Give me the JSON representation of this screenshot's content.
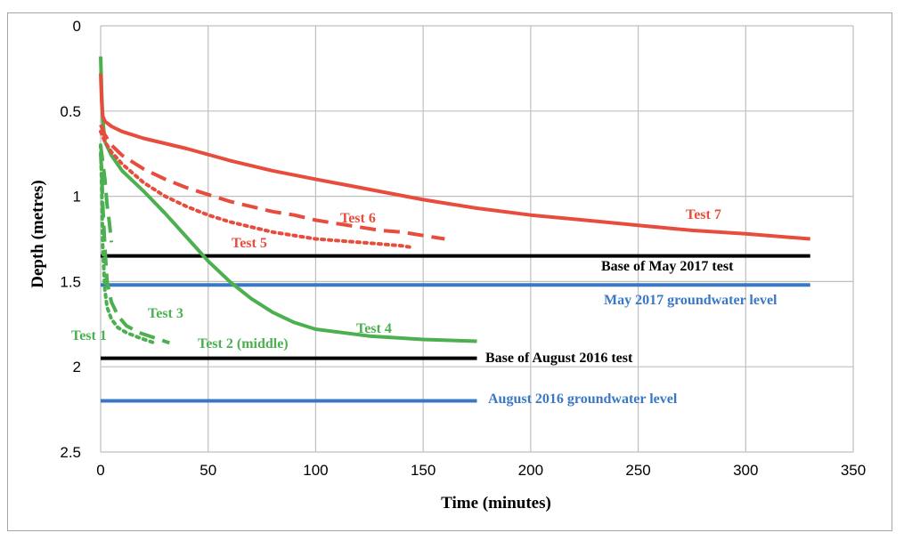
{
  "chart_data": {
    "type": "line",
    "title": "",
    "xlabel": "Time (minutes)",
    "ylabel": "Depth (metres)",
    "xlim": [
      0,
      350
    ],
    "ylim": [
      0,
      2.5
    ],
    "y_inverted": true,
    "x_ticks": [
      0,
      50,
      100,
      150,
      200,
      250,
      300,
      350
    ],
    "y_ticks": [
      0,
      0.5,
      1,
      1.5,
      2,
      2.5
    ],
    "x_tick_labels": [
      "0",
      "50",
      "100",
      "150",
      "200",
      "250",
      "300",
      "350"
    ],
    "y_tick_labels": [
      "0",
      "0.5",
      "1",
      "1.5",
      "2",
      "2.5"
    ],
    "grid": true,
    "series": [
      {
        "name": "Test 1",
        "color": "#4caf50",
        "dash": "dot",
        "x": [
          0,
          0.5,
          1,
          2,
          3,
          5,
          8,
          12,
          18,
          25
        ],
        "y": [
          0.7,
          0.95,
          1.3,
          1.55,
          1.65,
          1.72,
          1.77,
          1.8,
          1.83,
          1.86
        ]
      },
      {
        "name": "Test 2 (middle)",
        "color": "#4caf50",
        "dash": "dash",
        "x": [
          0,
          0.5,
          1,
          2,
          3,
          5,
          8,
          12,
          18,
          25,
          32
        ],
        "y": [
          0.75,
          0.85,
          1.05,
          1.3,
          1.5,
          1.62,
          1.7,
          1.76,
          1.8,
          1.83,
          1.86
        ]
      },
      {
        "name": "Test 3",
        "color": "#4caf50",
        "dash": "dash",
        "x": [
          0,
          1,
          2,
          3,
          4,
          5
        ],
        "y": [
          0.7,
          0.8,
          0.9,
          1.05,
          1.15,
          1.27
        ]
      },
      {
        "name": "Test 4",
        "color": "#4caf50",
        "dash": "solid",
        "x": [
          0,
          0.5,
          1,
          2,
          5,
          10,
          20,
          30,
          40,
          50,
          60,
          70,
          80,
          90,
          100,
          125,
          150,
          175
        ],
        "y": [
          0.18,
          0.4,
          0.55,
          0.68,
          0.76,
          0.85,
          0.97,
          1.1,
          1.24,
          1.38,
          1.5,
          1.6,
          1.68,
          1.74,
          1.78,
          1.82,
          1.84,
          1.85
        ]
      },
      {
        "name": "Test 5",
        "color": "#e74c3c",
        "dash": "dot",
        "x": [
          0,
          1,
          2,
          5,
          10,
          20,
          30,
          40,
          50,
          60,
          70,
          80,
          90,
          100,
          110,
          120,
          130,
          140,
          145
        ],
        "y": [
          0.62,
          0.65,
          0.68,
          0.74,
          0.81,
          0.92,
          1.0,
          1.06,
          1.11,
          1.15,
          1.18,
          1.21,
          1.23,
          1.25,
          1.26,
          1.27,
          1.28,
          1.29,
          1.3
        ]
      },
      {
        "name": "Test 6",
        "color": "#e74c3c",
        "dash": "dash",
        "x": [
          0,
          1,
          2,
          5,
          10,
          20,
          30,
          40,
          50,
          60,
          70,
          80,
          90,
          100,
          110,
          120,
          130,
          140,
          150,
          160
        ],
        "y": [
          0.58,
          0.61,
          0.64,
          0.7,
          0.76,
          0.84,
          0.9,
          0.95,
          0.99,
          1.03,
          1.06,
          1.09,
          1.11,
          1.14,
          1.16,
          1.18,
          1.2,
          1.21,
          1.23,
          1.25
        ]
      },
      {
        "name": "Test 7",
        "color": "#e74c3c",
        "dash": "solid",
        "x": [
          0,
          0.5,
          1,
          2,
          5,
          10,
          20,
          40,
          60,
          80,
          100,
          125,
          150,
          175,
          200,
          225,
          250,
          275,
          300,
          330
        ],
        "y": [
          0.28,
          0.45,
          0.53,
          0.56,
          0.59,
          0.62,
          0.66,
          0.72,
          0.79,
          0.85,
          0.9,
          0.96,
          1.02,
          1.07,
          1.11,
          1.14,
          1.17,
          1.2,
          1.22,
          1.25
        ]
      }
    ],
    "reference_lines": [
      {
        "name": "Base of May 2017 test",
        "color": "#000000",
        "y": 1.35,
        "x_end": 330
      },
      {
        "name": "May 2017 groundwater level",
        "color": "#3a78c3",
        "y": 1.52,
        "x_end": 330
      },
      {
        "name": "Base of August 2016 test",
        "color": "#000000",
        "y": 1.95,
        "x_end": 175
      },
      {
        "name": "August 2016 groundwater level",
        "color": "#3a78c3",
        "y": 2.2,
        "x_end": 175
      }
    ],
    "annotations": [
      {
        "text": "Test 1",
        "series": "Test 1"
      },
      {
        "text": "Test 2 (middle)",
        "series": "Test 2 (middle)"
      },
      {
        "text": "Test 3",
        "series": "Test 3"
      },
      {
        "text": "Test 4",
        "series": "Test 4"
      },
      {
        "text": "Test 5",
        "series": "Test 5"
      },
      {
        "text": "Test 6",
        "series": "Test 6"
      },
      {
        "text": "Test 7",
        "series": "Test 7"
      },
      {
        "text": "Base of May 2017 test",
        "series": "Base of May 2017 test"
      },
      {
        "text": "May 2017 groundwater level",
        "series": "May 2017 groundwater level"
      },
      {
        "text": "Base of August 2016 test",
        "series": "Base of August 2016 test"
      },
      {
        "text": "August 2016 groundwater level",
        "series": "August 2016 groundwater level"
      }
    ]
  }
}
